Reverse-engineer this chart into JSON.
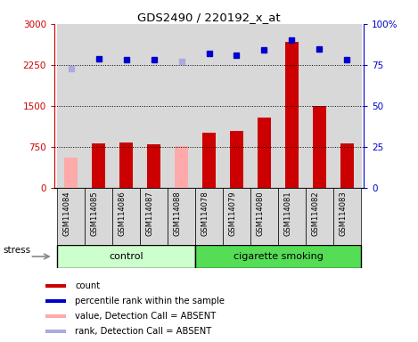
{
  "title": "GDS2490 / 220192_x_at",
  "samples": [
    "GSM114084",
    "GSM114085",
    "GSM114086",
    "GSM114087",
    "GSM114088",
    "GSM114078",
    "GSM114079",
    "GSM114080",
    "GSM114081",
    "GSM114082",
    "GSM114083"
  ],
  "bar_values": [
    550,
    820,
    840,
    800,
    770,
    1020,
    1040,
    1290,
    2680,
    1500,
    820
  ],
  "bar_colors": [
    "#ffaaaa",
    "#cc0000",
    "#cc0000",
    "#cc0000",
    "#ffaaaa",
    "#cc0000",
    "#cc0000",
    "#cc0000",
    "#cc0000",
    "#cc0000",
    "#cc0000"
  ],
  "rank_values": [
    73,
    79,
    78,
    78,
    77,
    82,
    81,
    84,
    90,
    85,
    78
  ],
  "rank_absent": [
    true,
    false,
    false,
    false,
    true,
    false,
    false,
    false,
    false,
    false,
    false
  ],
  "control_indices": [
    0,
    1,
    2,
    3,
    4
  ],
  "smoking_indices": [
    5,
    6,
    7,
    8,
    9,
    10
  ],
  "ylim_left": [
    0,
    3000
  ],
  "ylim_right": [
    0,
    100
  ],
  "yticks_left": [
    0,
    750,
    1500,
    2250,
    3000
  ],
  "yticks_right": [
    0,
    25,
    50,
    75,
    100
  ],
  "ytick_labels_left": [
    "0",
    "750",
    "1500",
    "2250",
    "3000"
  ],
  "ytick_labels_right": [
    "0",
    "25",
    "50",
    "75",
    "100%"
  ],
  "hlines": [
    750,
    1500,
    2250
  ],
  "control_color": "#ccffcc",
  "smoking_color": "#55dd55",
  "bar_width": 0.5,
  "rank_marker": "s",
  "rank_color_normal": "#0000cc",
  "rank_color_absent": "#aaaadd",
  "rank_markersize": 5,
  "stress_label": "stress",
  "control_label": "control",
  "smoking_label": "cigarette smoking",
  "left_axis_color": "#cc0000",
  "right_axis_color": "#0000cc",
  "legend_colors": [
    "#cc0000",
    "#0000cc",
    "#ffaaaa",
    "#aaaadd"
  ],
  "legend_labels": [
    "count",
    "percentile rank within the sample",
    "value, Detection Call = ABSENT",
    "rank, Detection Call = ABSENT"
  ],
  "figsize": [
    4.69,
    3.84
  ],
  "dpi": 100
}
